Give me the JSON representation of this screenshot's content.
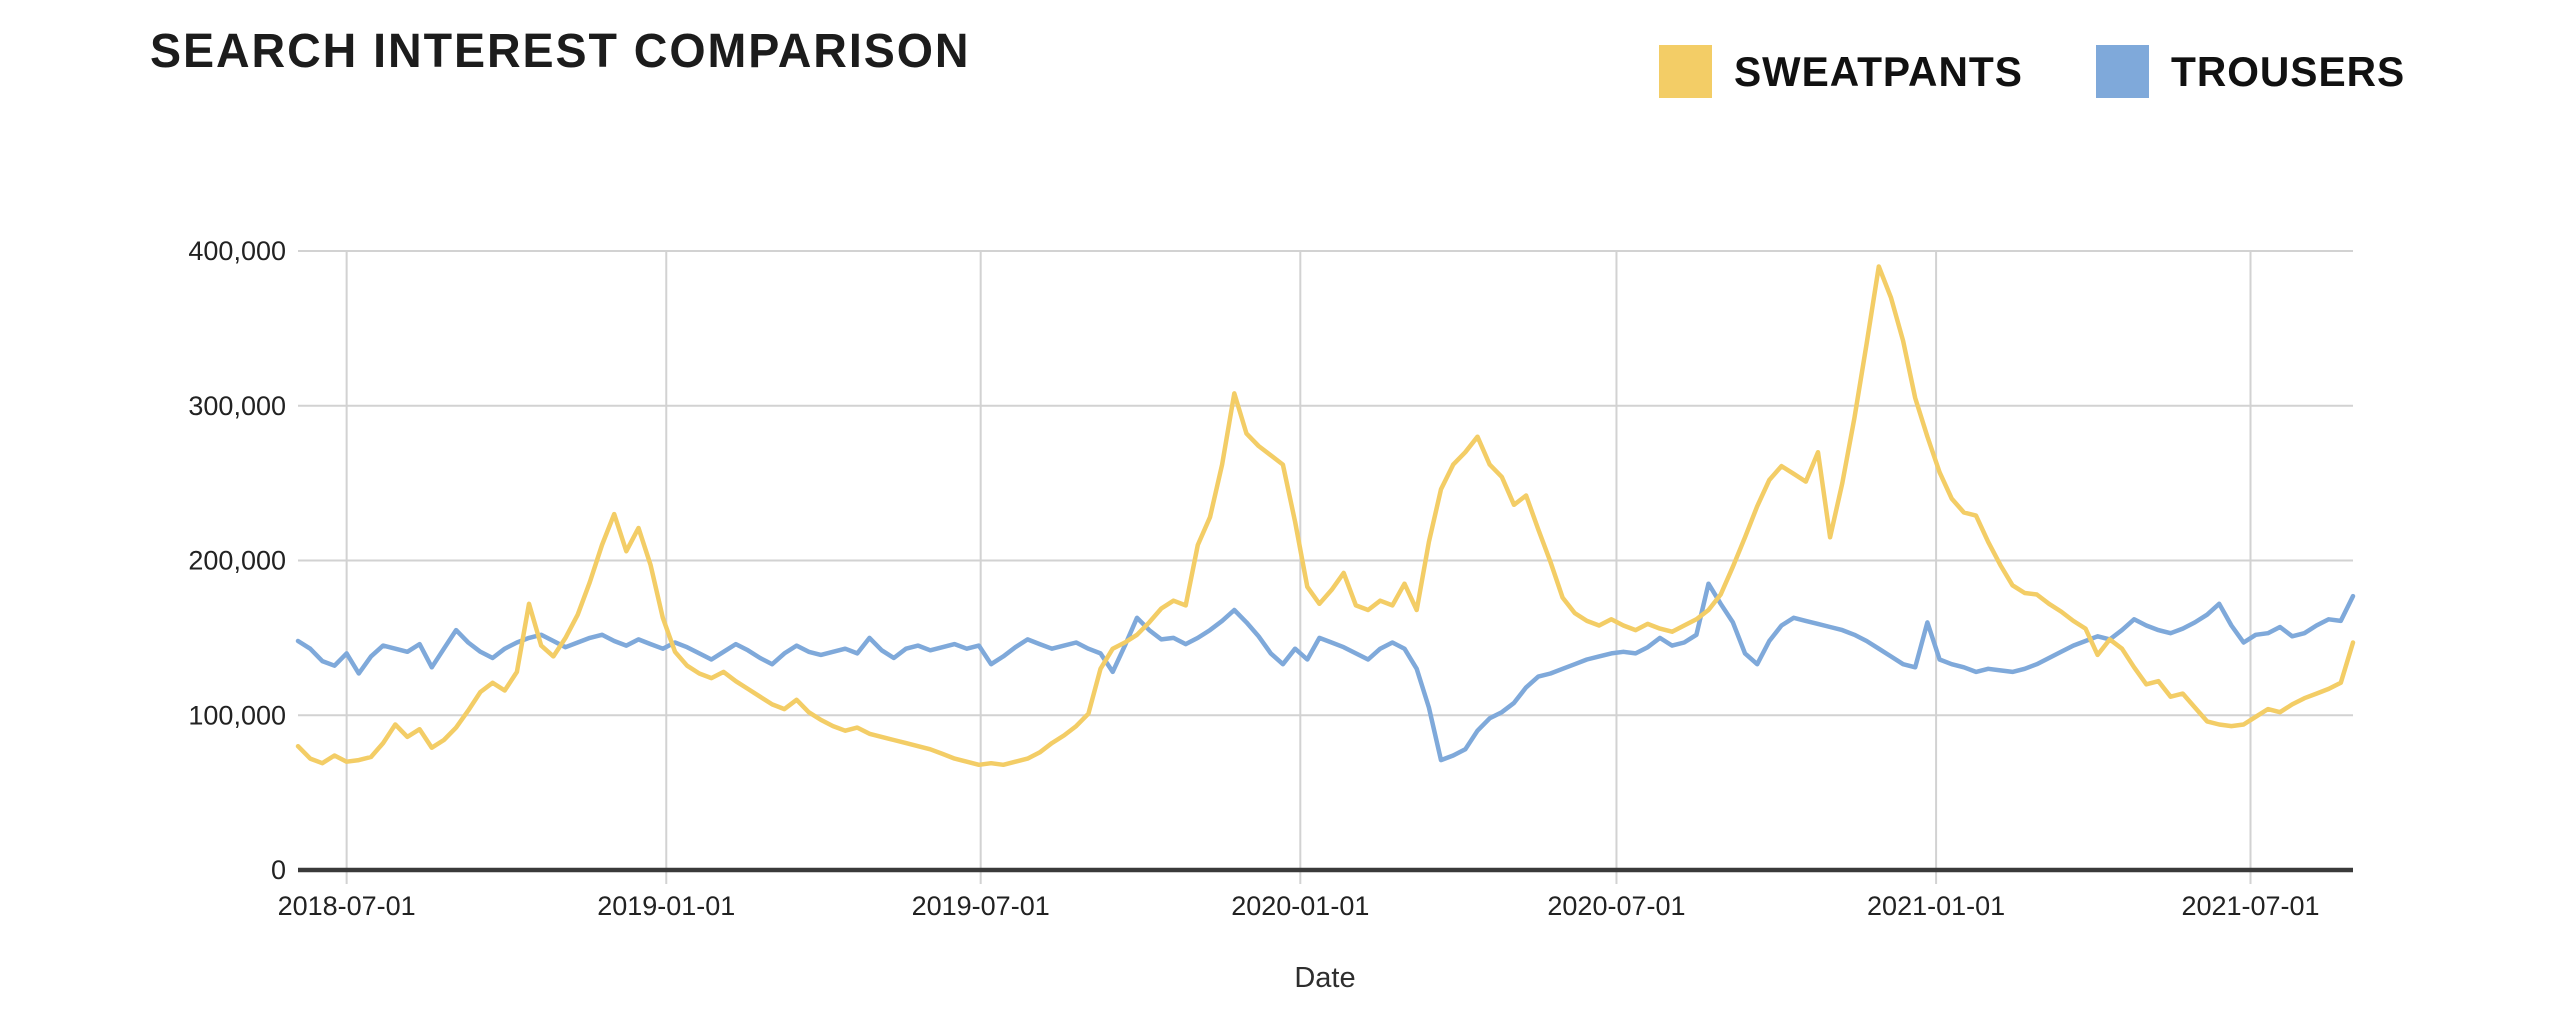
{
  "title": "SEARCH INTEREST COMPARISON",
  "legend": {
    "items": [
      {
        "label": "SWEATPANTS",
        "color": "#F3CD66"
      },
      {
        "label": "TROUSERS",
        "color": "#7FA9DA"
      }
    ]
  },
  "colors": {
    "sweatpants_line": "#F3CD66",
    "trousers_line": "#7FA9DA",
    "gridline": "#D2D2D2",
    "axis_line": "#3a3a3a",
    "text": "#222222",
    "background": "#ffffff"
  },
  "chart_data": {
    "type": "line",
    "title": "SEARCH INTEREST COMPARISON",
    "xlabel": "Date",
    "ylabel": "",
    "ylim": [
      0,
      400000
    ],
    "grid": true,
    "legend_position": "top-right",
    "x_start_date": "2018-06-03",
    "x_interval": "weekly",
    "x_tick_labels": [
      "2018-07-01",
      "2019-01-01",
      "2019-07-01",
      "2020-01-01",
      "2020-07-01",
      "2021-01-01",
      "2021-07-01"
    ],
    "y_tick_labels": [
      "0",
      "100,000",
      "200,000",
      "300,000",
      "400,000"
    ],
    "y_tick_values": [
      0,
      100000,
      200000,
      300000,
      400000
    ],
    "series": [
      {
        "name": "SWEATPANTS",
        "color": "#F3CD66",
        "values": [
          80000,
          72000,
          69000,
          74000,
          70000,
          71000,
          73000,
          82000,
          94000,
          86000,
          91000,
          79000,
          84000,
          92000,
          103000,
          115000,
          121000,
          116000,
          128000,
          172000,
          145000,
          138000,
          150000,
          165000,
          186000,
          210000,
          230000,
          206000,
          221000,
          197000,
          163000,
          141000,
          132000,
          127000,
          124000,
          128000,
          122000,
          117000,
          112000,
          107000,
          104000,
          110000,
          102000,
          97000,
          93000,
          90000,
          92000,
          88000,
          86000,
          84000,
          82000,
          80000,
          78000,
          75000,
          72000,
          70000,
          68000,
          69000,
          68000,
          70000,
          72000,
          76000,
          82000,
          87000,
          93000,
          101000,
          130000,
          143000,
          147000,
          152000,
          160000,
          169000,
          174000,
          171000,
          210000,
          228000,
          262000,
          308000,
          282000,
          274000,
          268000,
          262000,
          225000,
          183000,
          172000,
          181000,
          192000,
          171000,
          168000,
          174000,
          171000,
          185000,
          168000,
          212000,
          246000,
          262000,
          270000,
          280000,
          262000,
          254000,
          236000,
          242000,
          220000,
          199000,
          176000,
          166000,
          161000,
          158000,
          162000,
          158000,
          155000,
          159000,
          156000,
          154000,
          158000,
          162000,
          168000,
          178000,
          196000,
          215000,
          235000,
          252000,
          261000,
          256000,
          251000,
          270000,
          215000,
          250000,
          292000,
          340000,
          390000,
          370000,
          342000,
          305000,
          280000,
          257000,
          240000,
          231000,
          229000,
          212000,
          197000,
          184000,
          179000,
          178000,
          172000,
          167000,
          161000,
          156000,
          139000,
          149000,
          143000,
          131000,
          120000,
          122000,
          112000,
          114000,
          105000,
          96000,
          94000,
          93000,
          94000,
          99000,
          104000,
          102000,
          107000,
          111000,
          114000,
          117000,
          121000,
          147000
        ]
      },
      {
        "name": "TROUSERS",
        "color": "#7FA9DA",
        "values": [
          148000,
          143000,
          135000,
          132000,
          140000,
          127000,
          138000,
          145000,
          143000,
          141000,
          146000,
          131000,
          143000,
          155000,
          147000,
          141000,
          137000,
          143000,
          147000,
          150000,
          152000,
          148000,
          144000,
          147000,
          150000,
          152000,
          148000,
          145000,
          149000,
          146000,
          143000,
          147000,
          144000,
          140000,
          136000,
          141000,
          146000,
          142000,
          137000,
          133000,
          140000,
          145000,
          141000,
          139000,
          141000,
          143000,
          140000,
          150000,
          142000,
          137000,
          143000,
          145000,
          142000,
          144000,
          146000,
          143000,
          145000,
          133000,
          138000,
          144000,
          149000,
          146000,
          143000,
          145000,
          147000,
          143000,
          140000,
          128000,
          145000,
          163000,
          155000,
          149000,
          150000,
          146000,
          150000,
          155000,
          161000,
          168000,
          160000,
          151000,
          140000,
          133000,
          143000,
          136000,
          150000,
          147000,
          144000,
          140000,
          136000,
          143000,
          147000,
          143000,
          130000,
          105000,
          71000,
          74000,
          78000,
          90000,
          98000,
          102000,
          108000,
          118000,
          125000,
          127000,
          130000,
          133000,
          136000,
          138000,
          140000,
          141000,
          140000,
          144000,
          150000,
          145000,
          147000,
          152000,
          185000,
          172000,
          160000,
          140000,
          133000,
          148000,
          158000,
          163000,
          161000,
          159000,
          157000,
          155000,
          152000,
          148000,
          143000,
          138000,
          133000,
          131000,
          160000,
          136000,
          133000,
          131000,
          128000,
          130000,
          129000,
          128000,
          130000,
          133000,
          137000,
          141000,
          145000,
          148000,
          151000,
          149000,
          155000,
          162000,
          158000,
          155000,
          153000,
          156000,
          160000,
          165000,
          172000,
          158000,
          147000,
          152000,
          153000,
          157000,
          151000,
          153000,
          158000,
          162000,
          161000,
          177000
        ]
      }
    ]
  }
}
